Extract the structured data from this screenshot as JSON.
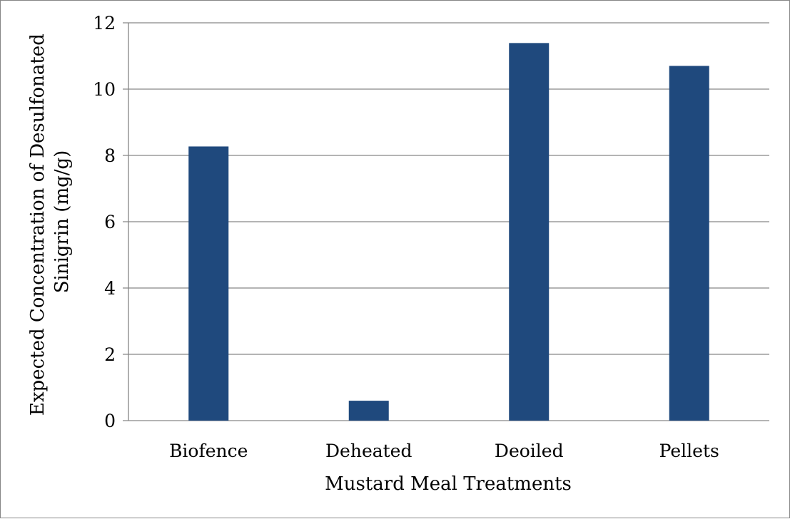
{
  "chart_data": {
    "type": "bar",
    "title": "",
    "xlabel": "Mustard Meal Treatments",
    "ylabel_line1": "Expected Concentration of Desulfonated",
    "ylabel_line2": "Sinigrin (mg/g)",
    "categories": [
      "Biofence",
      "Deheated",
      "Deoiled",
      "Pellets"
    ],
    "values": [
      8.27,
      0.6,
      11.39,
      10.7
    ],
    "ylim": [
      0,
      12
    ],
    "yticks": [
      "0",
      "2",
      "4",
      "6",
      "8",
      "10",
      "12"
    ],
    "grid": true,
    "legend": "none",
    "bar_color": "#1f497d",
    "grid_color": "#868686"
  }
}
